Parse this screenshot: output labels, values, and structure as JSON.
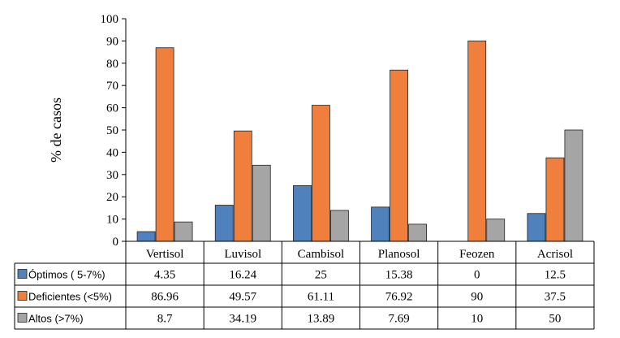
{
  "chart_data": {
    "type": "bar",
    "ylabel": "% de casos",
    "ylim": [
      0,
      100
    ],
    "yticks": [
      "0",
      "10",
      "20",
      "30",
      "40",
      "50",
      "60",
      "70",
      "80",
      "90",
      "100"
    ],
    "categories": [
      "Vertisol",
      "Luvisol",
      "Cambisol",
      "Planosol",
      "Feozen",
      "Acrisol"
    ],
    "series": [
      {
        "name": "Óptimos ( 5-7%)",
        "color": "#4f81bd",
        "values": [
          4.35,
          16.24,
          25,
          15.38,
          0,
          12.5
        ],
        "labels": [
          "4.35",
          "16.24",
          "25",
          "15.38",
          "0",
          "12.5"
        ]
      },
      {
        "name": "Deficientes (<5%)",
        "color": "#f07e3c",
        "values": [
          86.96,
          49.57,
          61.11,
          76.92,
          90,
          37.5
        ],
        "labels": [
          "86.96",
          "49.57",
          "61.11",
          "76.92",
          "90",
          "37.5"
        ]
      },
      {
        "name": "Altos (>7%)",
        "color": "#a5a5a5",
        "values": [
          8.7,
          34.19,
          13.89,
          7.69,
          10,
          50
        ],
        "labels": [
          "8.7",
          "34.19",
          "13.89",
          "7.69",
          "10",
          "50"
        ]
      }
    ],
    "grid": false,
    "legend": "data-table-left"
  }
}
